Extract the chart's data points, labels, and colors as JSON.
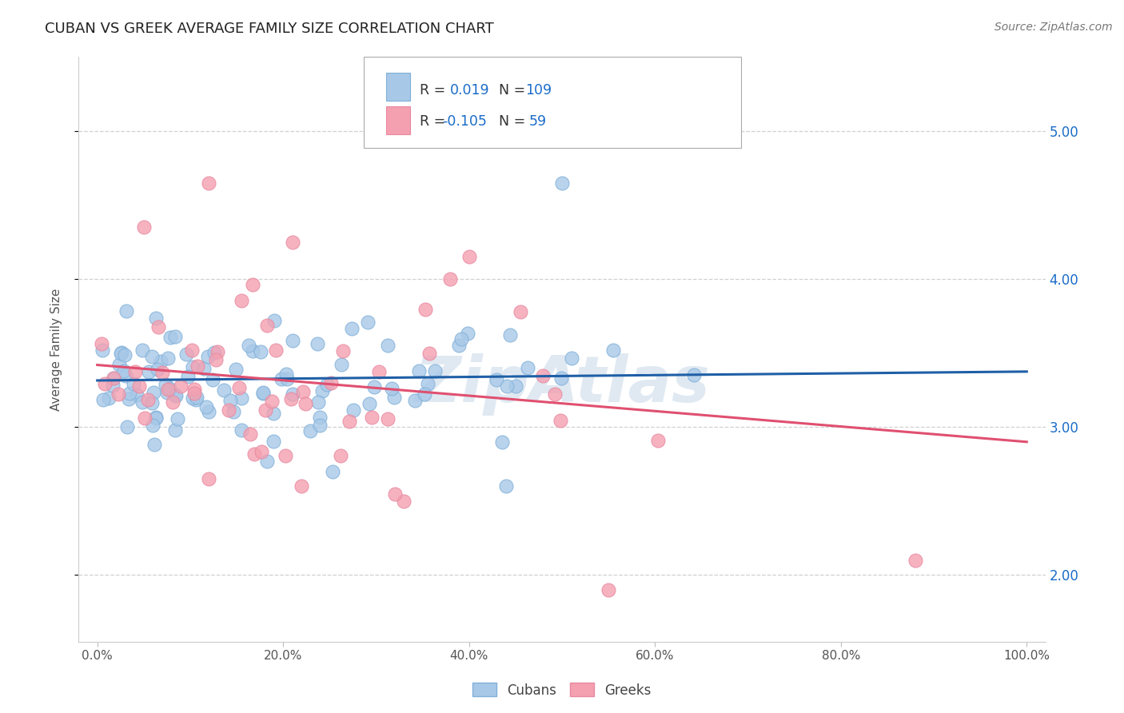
{
  "title": "CUBAN VS GREEK AVERAGE FAMILY SIZE CORRELATION CHART",
  "source": "Source: ZipAtlas.com",
  "ylabel": "Average Family Size",
  "yticks": [
    2.0,
    3.0,
    4.0,
    5.0
  ],
  "ylim": [
    1.55,
    5.5
  ],
  "xlim": [
    -0.02,
    1.02
  ],
  "cubans_R": 0.019,
  "cubans_N": 109,
  "greeks_R": -0.105,
  "greeks_N": 59,
  "blue_scatter": "#a8c8e8",
  "blue_line": "#1f5fa6",
  "pink_scatter": "#f4a0b0",
  "pink_line": "#e05070",
  "watermark_color": "#c8d8e8",
  "legend_R_color": "#1a6cc8",
  "legend_label_color": "#333333",
  "xtick_labels": [
    "0.0%",
    "20.0%",
    "40.0%",
    "60.0%",
    "80.0%",
    "100.0%"
  ],
  "xtick_vals": [
    0.0,
    0.2,
    0.4,
    0.6,
    0.8,
    1.0
  ],
  "cubans_seed": 99,
  "greeks_seed": 77,
  "blue_intercept": 3.28,
  "blue_slope": 0.08,
  "pink_intercept": 3.45,
  "pink_slope": -0.55,
  "blue_noise": 0.22,
  "pink_noise": 0.28
}
